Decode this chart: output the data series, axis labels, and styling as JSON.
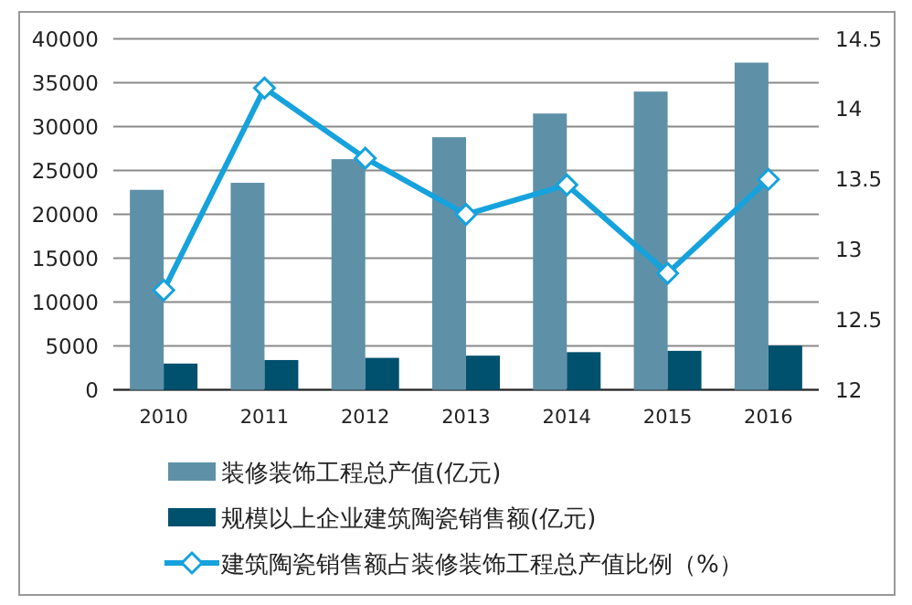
{
  "chart_data": {
    "type": "bar",
    "categories": [
      "2010",
      "2011",
      "2012",
      "2013",
      "2014",
      "2015",
      "2016"
    ],
    "series": [
      {
        "name": "装修装饰工程总产值(亿元)",
        "color": "#5e91a8",
        "values": [
          22800,
          23600,
          26300,
          28800,
          31500,
          34000,
          37300
        ]
      },
      {
        "name": "规模以上企业建筑陶瓷销售额(亿元)",
        "color": "#00516e",
        "values": [
          3000,
          3400,
          3650,
          3900,
          4300,
          4450,
          5050
        ]
      },
      {
        "name": "建筑陶瓷销售额占装修装饰工程总产值比例（%）",
        "type": "line",
        "axis": "y2",
        "color": "#16a2dc",
        "marker": "diamond",
        "values": [
          12.71,
          14.15,
          13.65,
          13.25,
          13.46,
          12.83,
          13.5
        ]
      }
    ],
    "ylim": [
      0,
      40000
    ],
    "yticks": [
      0,
      5000,
      10000,
      15000,
      20000,
      25000,
      30000,
      35000,
      40000
    ],
    "y2lim": [
      12,
      14.5
    ],
    "y2ticks": [
      12,
      12.5,
      13,
      13.5,
      14,
      14.5
    ],
    "grid": "y",
    "legend": "bottom"
  }
}
